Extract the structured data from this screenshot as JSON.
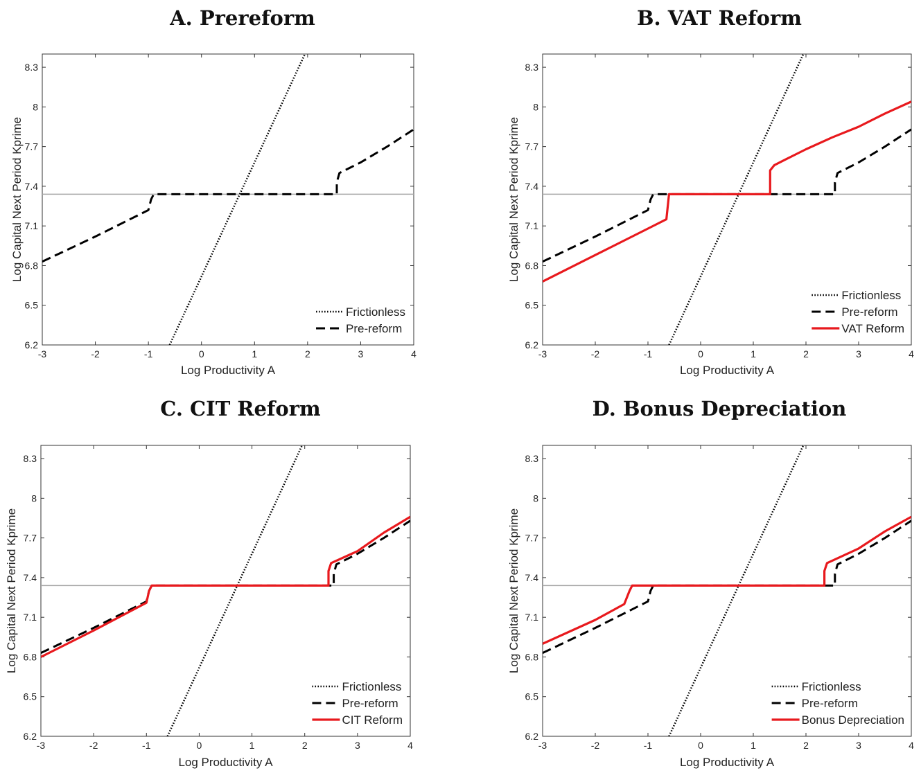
{
  "chart_data": [
    {
      "type": "line",
      "title": "A. Prereform",
      "xlabel": "Log Productivity A",
      "ylabel": "Log Capital Next Period Kprime",
      "xlim": [
        -3,
        4
      ],
      "ylim": [
        6.2,
        8.4
      ],
      "xticks": [
        "-3",
        "-2",
        "-1",
        "0",
        "1",
        "2",
        "3",
        "4"
      ],
      "yticks": [
        "6.2",
        "6.5",
        "6.8",
        "7.1",
        "7.4",
        "7.7",
        "8",
        "8.3"
      ],
      "hline": 7.34,
      "legend_position": "bottom-right",
      "series": [
        {
          "name": "Frictionless",
          "style": "dotted",
          "color": "#000000",
          "x": [
            -0.6,
            1.95
          ],
          "y": [
            6.2,
            8.4
          ]
        },
        {
          "name": "Pre-reform",
          "style": "dashed",
          "color": "#000000",
          "x": [
            -3,
            -2,
            -1,
            -0.95,
            -0.9,
            2.55,
            2.55,
            2.6,
            3,
            3.5,
            4
          ],
          "y": [
            6.83,
            7.02,
            7.22,
            7.3,
            7.34,
            7.34,
            7.43,
            7.5,
            7.58,
            7.7,
            7.83
          ]
        }
      ]
    },
    {
      "type": "line",
      "title": "B. VAT Reform",
      "xlabel": "Log Productivity A",
      "ylabel": "Log Capital Next Period Kprime",
      "xlim": [
        -3,
        4
      ],
      "ylim": [
        6.2,
        8.4
      ],
      "xticks": [
        "-3",
        "-2",
        "-1",
        "0",
        "1",
        "2",
        "3",
        "4"
      ],
      "yticks": [
        "6.2",
        "6.5",
        "6.8",
        "7.1",
        "7.4",
        "7.7",
        "8",
        "8.3"
      ],
      "hline": 7.34,
      "legend_position": "bottom-right",
      "series": [
        {
          "name": "Frictionless",
          "style": "dotted",
          "color": "#000000",
          "x": [
            -0.6,
            1.95
          ],
          "y": [
            6.2,
            8.4
          ]
        },
        {
          "name": "Pre-reform",
          "style": "dashed",
          "color": "#000000",
          "x": [
            -3,
            -2,
            -1,
            -0.95,
            -0.9,
            2.55,
            2.55,
            2.6,
            3,
            3.5,
            4
          ],
          "y": [
            6.83,
            7.02,
            7.22,
            7.3,
            7.34,
            7.34,
            7.43,
            7.5,
            7.58,
            7.7,
            7.83
          ]
        },
        {
          "name": "VAT Reform",
          "style": "solid",
          "color": "#e8191d",
          "x": [
            -3,
            -2,
            -1,
            -0.65,
            -0.6,
            1.32,
            1.32,
            1.4,
            1.6,
            2,
            2.5,
            3,
            3.5,
            4
          ],
          "y": [
            6.68,
            6.88,
            7.08,
            7.15,
            7.34,
            7.34,
            7.52,
            7.56,
            7.6,
            7.68,
            7.77,
            7.85,
            7.95,
            8.04
          ]
        }
      ]
    },
    {
      "type": "line",
      "title": "C. CIT Reform",
      "xlabel": "Log Productivity A",
      "ylabel": "Log Capital Next Period Kprime",
      "xlim": [
        -3,
        4
      ],
      "ylim": [
        6.2,
        8.4
      ],
      "xticks": [
        "-3",
        "-2",
        "-1",
        "0",
        "1",
        "2",
        "3",
        "4"
      ],
      "yticks": [
        "6.2",
        "6.5",
        "6.8",
        "7.1",
        "7.4",
        "7.7",
        "8",
        "8.3"
      ],
      "hline": 7.34,
      "legend_position": "bottom-right",
      "series": [
        {
          "name": "Frictionless",
          "style": "dotted",
          "color": "#000000",
          "x": [
            -0.6,
            1.95
          ],
          "y": [
            6.2,
            8.4
          ]
        },
        {
          "name": "Pre-reform",
          "style": "dashed",
          "color": "#000000",
          "x": [
            -3,
            -2,
            -1,
            -0.95,
            -0.9,
            2.55,
            2.55,
            2.6,
            3,
            3.5,
            4
          ],
          "y": [
            6.83,
            7.02,
            7.22,
            7.3,
            7.34,
            7.34,
            7.43,
            7.5,
            7.58,
            7.7,
            7.83
          ]
        },
        {
          "name": "CIT Reform",
          "style": "solid",
          "color": "#e8191d",
          "x": [
            -3,
            -2,
            -1,
            -0.95,
            -0.9,
            2.45,
            2.45,
            2.5,
            3,
            3.5,
            4
          ],
          "y": [
            6.8,
            7.0,
            7.21,
            7.3,
            7.34,
            7.34,
            7.45,
            7.51,
            7.6,
            7.74,
            7.86
          ]
        }
      ]
    },
    {
      "type": "line",
      "title": "D. Bonus Depreciation",
      "xlabel": "Log Productivity A",
      "ylabel": "Log Capital Next Period Kprime",
      "xlim": [
        -3,
        4
      ],
      "ylim": [
        6.2,
        8.4
      ],
      "xticks": [
        "-3",
        "-2",
        "-1",
        "0",
        "1",
        "2",
        "3",
        "4"
      ],
      "yticks": [
        "6.2",
        "6.5",
        "6.8",
        "7.1",
        "7.4",
        "7.7",
        "8",
        "8.3"
      ],
      "hline": 7.34,
      "legend_position": "bottom-right",
      "series": [
        {
          "name": "Frictionless",
          "style": "dotted",
          "color": "#000000",
          "x": [
            -0.6,
            1.95
          ],
          "y": [
            6.2,
            8.4
          ]
        },
        {
          "name": "Pre-reform",
          "style": "dashed",
          "color": "#000000",
          "x": [
            -3,
            -2,
            -1,
            -0.95,
            -0.9,
            2.55,
            2.55,
            2.6,
            3,
            3.5,
            4
          ],
          "y": [
            6.83,
            7.02,
            7.22,
            7.3,
            7.34,
            7.34,
            7.43,
            7.5,
            7.58,
            7.7,
            7.83
          ]
        },
        {
          "name": "Bonus Depreciation",
          "style": "solid",
          "color": "#e8191d",
          "x": [
            -3,
            -2,
            -1.45,
            -1.35,
            -1.3,
            2.35,
            2.35,
            2.4,
            3,
            3.5,
            4
          ],
          "y": [
            6.9,
            7.08,
            7.2,
            7.3,
            7.34,
            7.34,
            7.45,
            7.51,
            7.62,
            7.75,
            7.86
          ]
        }
      ]
    }
  ]
}
